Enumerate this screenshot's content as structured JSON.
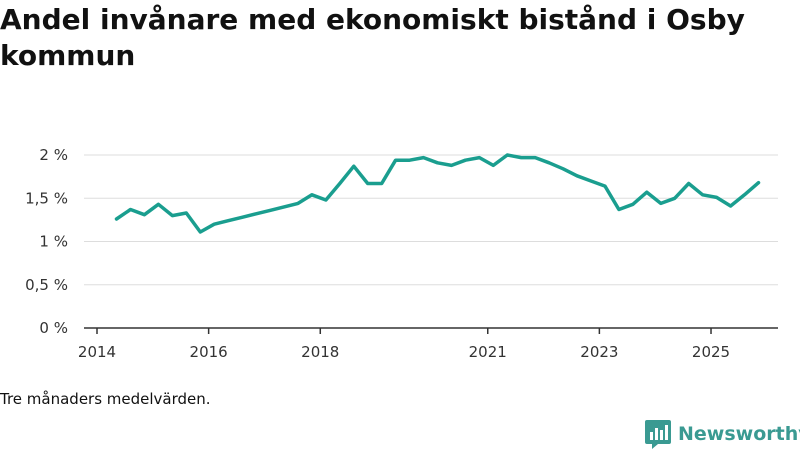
{
  "chart_data": {
    "type": "line",
    "title": "Andel invånare med ekonomiskt bistånd i Osby kommun",
    "xlabel": "",
    "ylabel": "",
    "ylim": [
      0,
      2
    ],
    "xlim": [
      2014,
      2026.2
    ],
    "y_ticks": [
      {
        "value": 0,
        "label": "0 %"
      },
      {
        "value": 0.5,
        "label": "0,5 %"
      },
      {
        "value": 1,
        "label": "1 %"
      },
      {
        "value": 1.5,
        "label": "1,5 %"
      },
      {
        "value": 2,
        "label": "2 %"
      }
    ],
    "x_ticks": [
      {
        "value": 2014,
        "label": "2014"
      },
      {
        "value": 2016,
        "label": "2016"
      },
      {
        "value": 2018,
        "label": "2018"
      },
      {
        "value": 2021,
        "label": "2021"
      },
      {
        "value": 2023,
        "label": "2023"
      },
      {
        "value": 2025,
        "label": "2025"
      }
    ],
    "grid": true,
    "series": [
      {
        "name": "Andel invånare med ekonomiskt bistånd",
        "color": "#1a9e8f",
        "points": [
          [
            2014.35,
            1.26
          ],
          [
            2014.6,
            1.37
          ],
          [
            2014.85,
            1.31
          ],
          [
            2015.1,
            1.43
          ],
          [
            2015.35,
            1.3
          ],
          [
            2015.6,
            1.33
          ],
          [
            2015.85,
            1.11
          ],
          [
            2016.1,
            1.2
          ],
          [
            2016.35,
            1.24
          ],
          [
            2016.6,
            1.28
          ],
          [
            2016.85,
            1.32
          ],
          [
            2017.1,
            1.36
          ],
          [
            2017.35,
            1.4
          ],
          [
            2017.6,
            1.44
          ],
          [
            2017.85,
            1.54
          ],
          [
            2018.1,
            1.48
          ],
          [
            2018.35,
            1.67
          ],
          [
            2018.6,
            1.87
          ],
          [
            2018.85,
            1.67
          ],
          [
            2019.1,
            1.67
          ],
          [
            2019.35,
            1.94
          ],
          [
            2019.6,
            1.94
          ],
          [
            2019.85,
            1.97
          ],
          [
            2020.1,
            1.91
          ],
          [
            2020.35,
            1.88
          ],
          [
            2020.6,
            1.94
          ],
          [
            2020.85,
            1.97
          ],
          [
            2021.1,
            1.88
          ],
          [
            2021.35,
            2.0
          ],
          [
            2021.6,
            1.97
          ],
          [
            2021.85,
            1.97
          ],
          [
            2022.1,
            1.91
          ],
          [
            2022.35,
            1.84
          ],
          [
            2022.6,
            1.76
          ],
          [
            2022.85,
            1.7
          ],
          [
            2023.1,
            1.64
          ],
          [
            2023.35,
            1.37
          ],
          [
            2023.6,
            1.43
          ],
          [
            2023.85,
            1.57
          ],
          [
            2024.1,
            1.44
          ],
          [
            2024.35,
            1.5
          ],
          [
            2024.6,
            1.67
          ],
          [
            2024.85,
            1.54
          ],
          [
            2025.1,
            1.51
          ],
          [
            2025.35,
            1.41
          ],
          [
            2025.6,
            1.54
          ],
          [
            2025.85,
            1.68
          ]
        ]
      }
    ]
  },
  "footnote": "Tre månaders medelvärden.",
  "brand": {
    "name": "Newsworthy",
    "color": "#3a9a92",
    "icon": "newsworthy-logo-icon"
  }
}
